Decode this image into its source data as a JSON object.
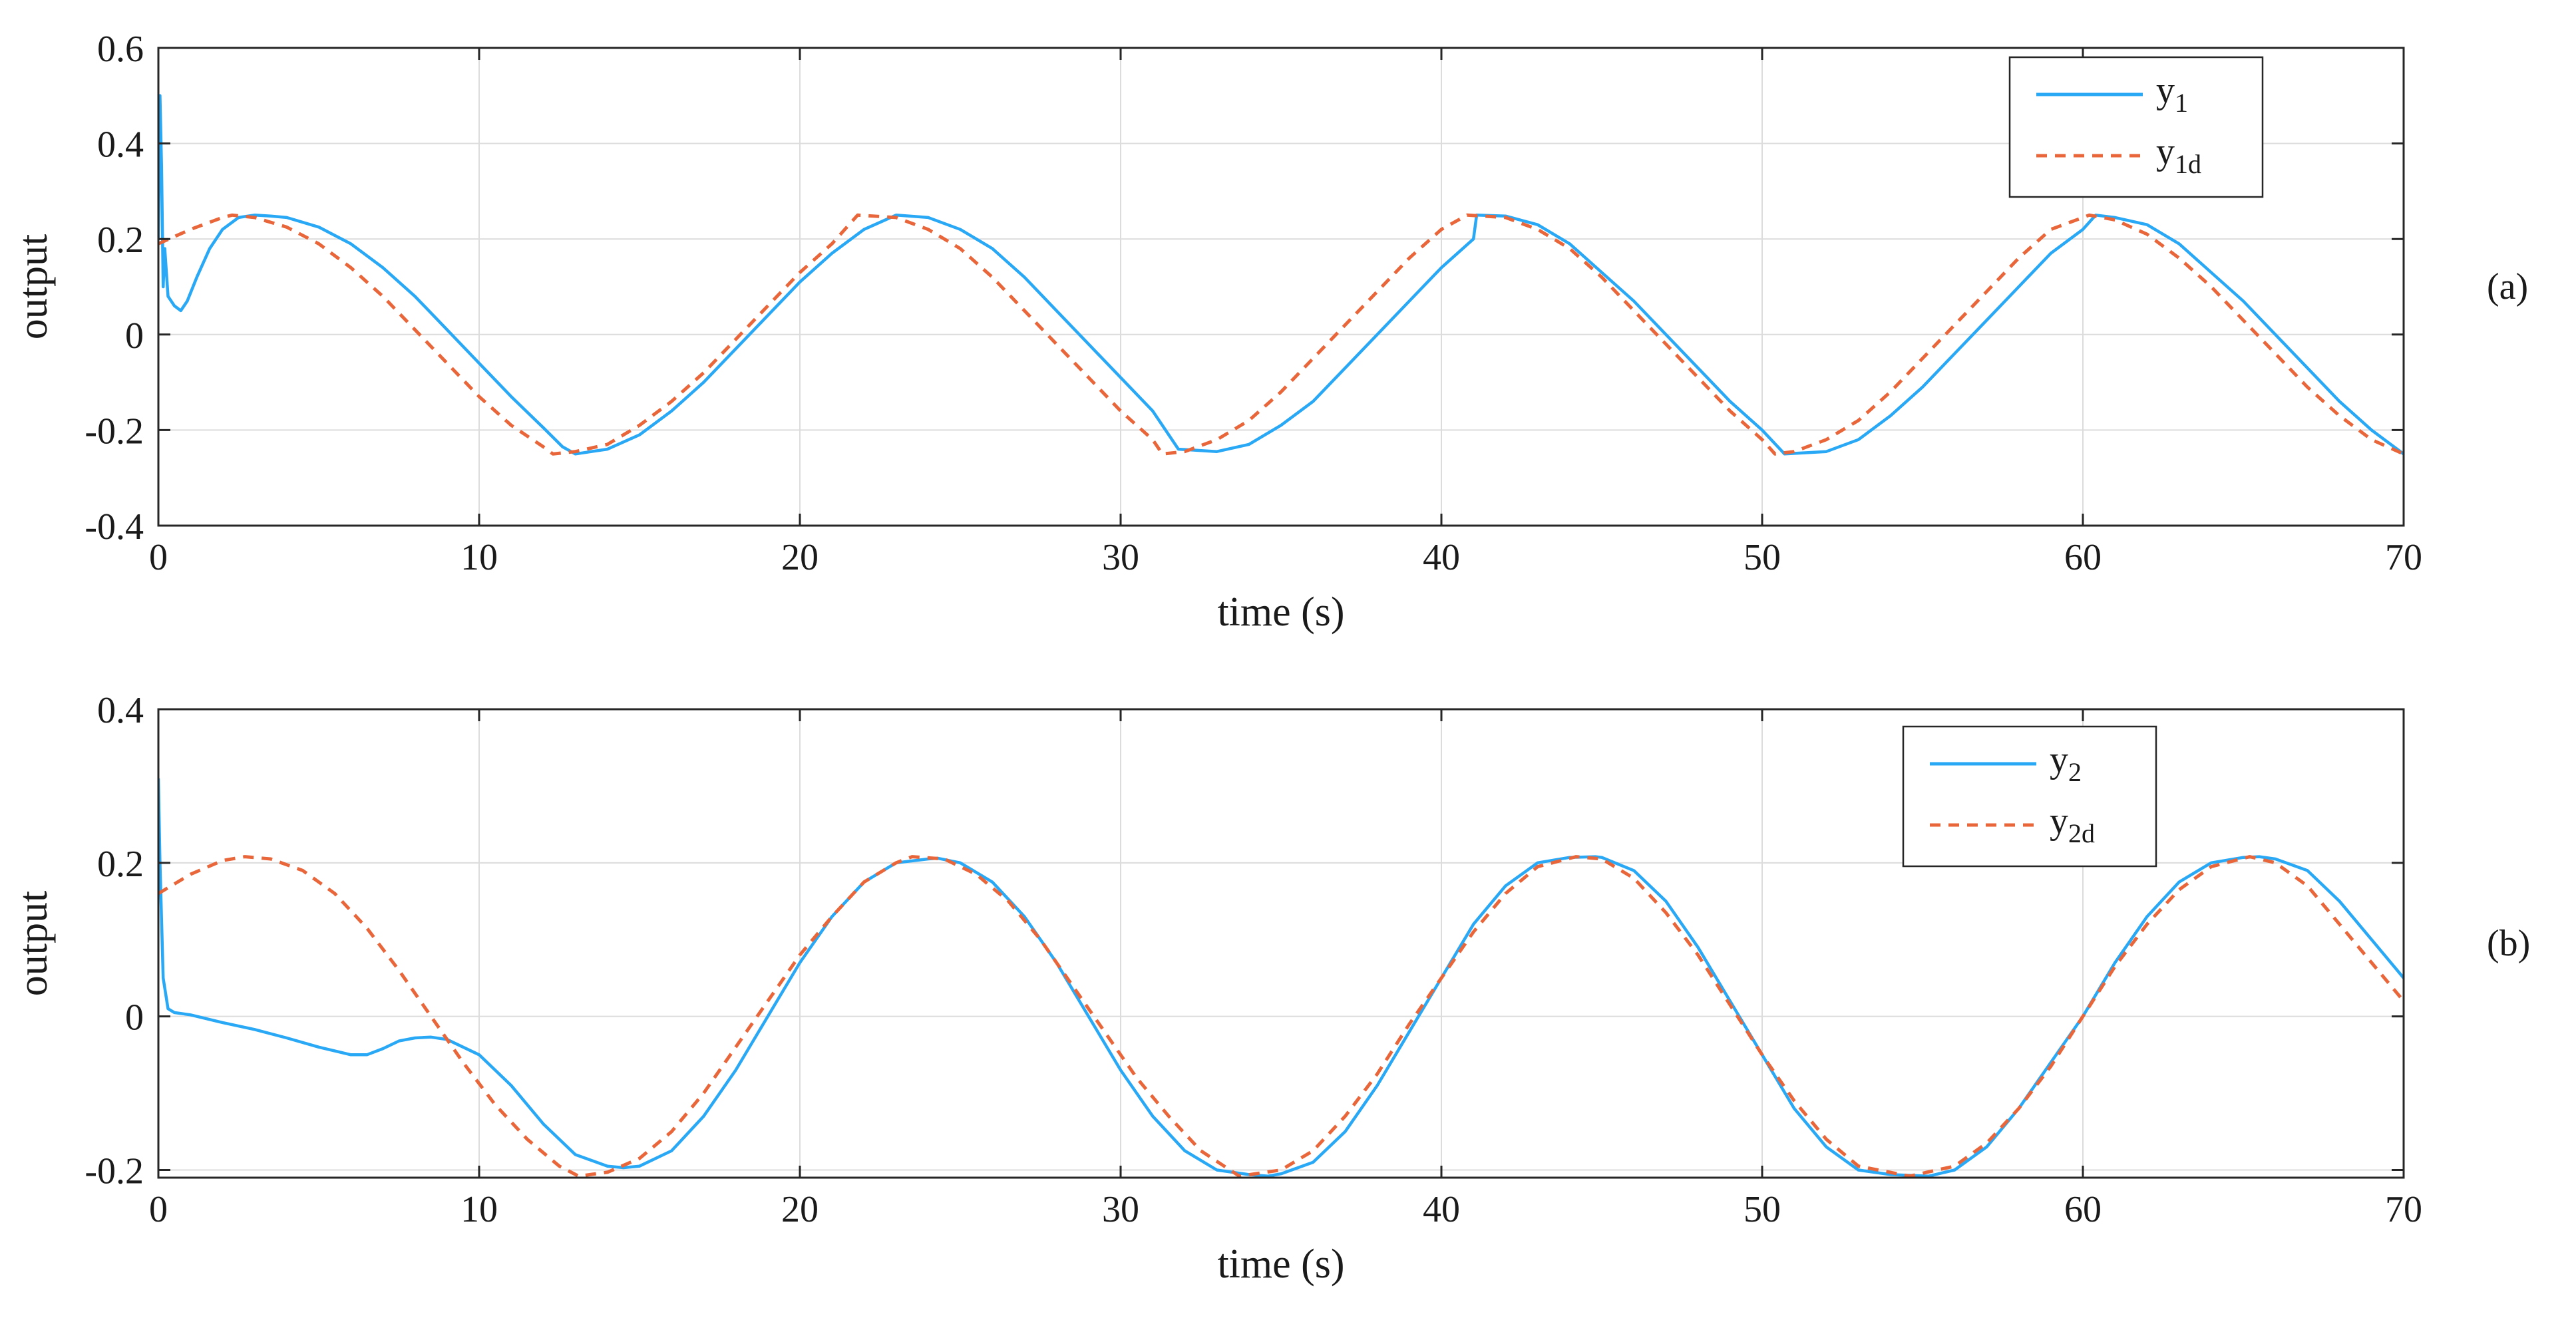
{
  "chart_data": [
    {
      "type": "line",
      "panel_label": "(a)",
      "xlabel": "time (s)",
      "ylabel": "output",
      "xlim": [
        0,
        70
      ],
      "ylim": [
        -0.4,
        0.6
      ],
      "xticks": [
        "0",
        "10",
        "20",
        "30",
        "40",
        "50",
        "60",
        "70"
      ],
      "yticks": [
        "-0.4",
        "-0.2",
        "0",
        "0.2",
        "0.4",
        "0.6"
      ],
      "grid": true,
      "legend_position": "top-right",
      "series": [
        {
          "name": "y",
          "name_sub": "1",
          "color": "#29a8f5",
          "dash": "solid",
          "x": [
            0,
            0.05,
            0.1,
            0.15,
            0.2,
            0.3,
            0.5,
            0.7,
            0.9,
            1.2,
            1.6,
            2.0,
            2.5,
            3.0,
            3.5,
            4,
            5,
            6,
            7,
            8,
            9,
            10,
            11,
            12,
            12.6,
            13,
            14,
            15,
            16,
            17,
            18,
            19,
            20,
            21,
            22,
            23,
            24,
            25,
            26,
            27,
            28,
            29,
            30,
            31,
            31.8,
            33,
            34,
            35,
            36,
            37,
            38,
            39,
            40,
            41,
            41.1,
            42,
            43,
            44,
            45,
            46,
            47,
            48,
            49,
            50,
            50.7,
            52,
            53,
            54,
            55,
            56,
            57,
            58,
            59,
            60,
            60.4,
            61,
            62,
            63,
            64,
            65,
            66,
            67,
            68,
            69,
            70
          ],
          "y": [
            0.2,
            0.5,
            0.35,
            0.1,
            0.18,
            0.08,
            0.06,
            0.05,
            0.07,
            0.12,
            0.18,
            0.22,
            0.245,
            0.25,
            0.248,
            0.245,
            0.225,
            0.19,
            0.14,
            0.08,
            0.01,
            -0.06,
            -0.13,
            -0.195,
            -0.235,
            -0.25,
            -0.24,
            -0.21,
            -0.16,
            -0.1,
            -0.03,
            0.04,
            0.11,
            0.17,
            0.22,
            0.25,
            0.245,
            0.22,
            0.18,
            0.12,
            0.05,
            -0.02,
            -0.09,
            -0.16,
            -0.24,
            -0.245,
            -0.23,
            -0.19,
            -0.14,
            -0.07,
            0.0,
            0.07,
            0.14,
            0.2,
            0.25,
            0.248,
            0.23,
            0.19,
            0.13,
            0.07,
            0.0,
            -0.07,
            -0.14,
            -0.2,
            -0.25,
            -0.245,
            -0.22,
            -0.17,
            -0.11,
            -0.04,
            0.03,
            0.1,
            0.17,
            0.22,
            0.25,
            0.245,
            0.23,
            0.19,
            0.13,
            0.07,
            0.0,
            -0.07,
            -0.14,
            -0.2,
            -0.25
          ]
        },
        {
          "name": "y",
          "name_sub": "1d",
          "color": "#e8663a",
          "dash": "dashed",
          "x": [
            0,
            1,
            2,
            2.3,
            3,
            4,
            5,
            6,
            7,
            8,
            9,
            10,
            11,
            12,
            12.3,
            13,
            14,
            15,
            16,
            17,
            18,
            19,
            20,
            21,
            21.8,
            23,
            24,
            25,
            26,
            27,
            28,
            29,
            30,
            31,
            31.3,
            32,
            33,
            34,
            35,
            36,
            37,
            38,
            39,
            40,
            40.8,
            42,
            43,
            44,
            45,
            46,
            47,
            48,
            49,
            50,
            50.4,
            51,
            52,
            53,
            54,
            55,
            56,
            57,
            58,
            59,
            60,
            60.2,
            61,
            62,
            63,
            64,
            65,
            66,
            67,
            68,
            69,
            70
          ],
          "y": [
            0.19,
            0.22,
            0.245,
            0.25,
            0.245,
            0.225,
            0.19,
            0.14,
            0.08,
            0.01,
            -0.06,
            -0.13,
            -0.19,
            -0.235,
            -0.25,
            -0.245,
            -0.23,
            -0.19,
            -0.14,
            -0.08,
            -0.01,
            0.06,
            0.13,
            0.19,
            0.25,
            0.245,
            0.22,
            0.18,
            0.12,
            0.05,
            -0.02,
            -0.09,
            -0.16,
            -0.22,
            -0.25,
            -0.245,
            -0.22,
            -0.18,
            -0.12,
            -0.05,
            0.02,
            0.09,
            0.16,
            0.22,
            0.25,
            0.245,
            0.22,
            0.18,
            0.12,
            0.05,
            -0.02,
            -0.09,
            -0.16,
            -0.22,
            -0.25,
            -0.245,
            -0.22,
            -0.18,
            -0.12,
            -0.05,
            0.02,
            0.09,
            0.16,
            0.22,
            0.245,
            0.25,
            0.24,
            0.21,
            0.16,
            0.1,
            0.03,
            -0.04,
            -0.11,
            -0.17,
            -0.22,
            -0.25
          ]
        }
      ]
    },
    {
      "type": "line",
      "panel_label": "(b)",
      "xlabel": "time (s)",
      "ylabel": "output",
      "xlim": [
        0,
        70
      ],
      "ylim": [
        -0.21,
        0.4
      ],
      "xticks": [
        "0",
        "10",
        "20",
        "30",
        "40",
        "50",
        "60",
        "70"
      ],
      "yticks": [
        "-0.2",
        "0",
        "0.2",
        "0.4"
      ],
      "ytick_values": [
        -0.2,
        0,
        0.2,
        0.4
      ],
      "grid": true,
      "legend_position": "top-right",
      "series": [
        {
          "name": "y",
          "name_sub": "2",
          "color": "#29a8f5",
          "dash": "solid",
          "x": [
            0,
            0.05,
            0.15,
            0.3,
            0.5,
            1,
            2,
            3,
            4,
            5,
            6,
            6.5,
            7,
            7.5,
            8,
            8.5,
            9,
            10,
            11,
            12,
            13,
            14,
            14.5,
            15,
            16,
            17,
            18,
            19,
            20,
            21,
            22,
            23,
            24,
            24.3,
            25,
            26,
            27,
            28,
            29,
            30,
            31,
            32,
            33,
            34,
            34.6,
            35,
            36,
            37,
            38,
            39,
            40,
            41,
            42,
            43,
            44,
            44.8,
            45,
            46,
            47,
            48,
            49,
            50,
            51,
            52,
            53,
            54,
            55.2,
            56,
            57,
            58,
            59,
            60,
            61,
            62,
            63,
            64,
            65,
            65.5,
            66,
            67,
            68,
            69,
            70
          ],
          "y": [
            0.31,
            0.2,
            0.05,
            0.01,
            0.005,
            0.002,
            -0.008,
            -0.017,
            -0.028,
            -0.04,
            -0.05,
            -0.05,
            -0.042,
            -0.032,
            -0.028,
            -0.027,
            -0.03,
            -0.05,
            -0.09,
            -0.14,
            -0.18,
            -0.195,
            -0.197,
            -0.195,
            -0.175,
            -0.13,
            -0.07,
            -0.0,
            0.07,
            0.13,
            0.175,
            0.2,
            0.205,
            0.206,
            0.2,
            0.175,
            0.13,
            0.07,
            0.0,
            -0.07,
            -0.13,
            -0.175,
            -0.2,
            -0.206,
            -0.208,
            -0.205,
            -0.19,
            -0.15,
            -0.09,
            -0.02,
            0.05,
            0.12,
            0.17,
            0.2,
            0.207,
            0.208,
            0.207,
            0.19,
            0.15,
            0.09,
            0.02,
            -0.05,
            -0.12,
            -0.17,
            -0.2,
            -0.206,
            -0.208,
            -0.2,
            -0.17,
            -0.12,
            -0.06,
            0.0,
            0.07,
            0.13,
            0.175,
            0.2,
            0.207,
            0.208,
            0.205,
            0.19,
            0.15,
            0.1,
            0.05
          ]
        },
        {
          "name": "y",
          "name_sub": "2d",
          "color": "#e8663a",
          "dash": "dashed",
          "x": [
            0,
            1,
            2,
            2.7,
            3.5,
            4.5,
            5.5,
            6.5,
            7.5,
            8.5,
            9.5,
            10.5,
            11.5,
            12.5,
            13.1,
            14,
            15,
            16,
            17,
            18,
            19,
            20,
            21,
            22,
            23,
            23.5,
            24.5,
            25.5,
            26.5,
            27.5,
            28.5,
            29.5,
            30.5,
            31.5,
            32.5,
            33.7,
            35,
            36,
            37,
            38,
            39,
            40,
            41,
            42,
            43,
            44.2,
            45,
            46,
            47,
            48,
            49,
            50,
            51,
            52,
            53,
            54.6,
            56,
            57,
            58,
            59,
            60,
            61,
            62,
            63,
            64,
            65.2,
            66,
            67,
            68,
            69,
            70
          ],
          "y": [
            0.16,
            0.185,
            0.203,
            0.208,
            0.205,
            0.19,
            0.16,
            0.115,
            0.06,
            0.0,
            -0.06,
            -0.115,
            -0.16,
            -0.195,
            -0.208,
            -0.203,
            -0.185,
            -0.15,
            -0.1,
            -0.04,
            0.02,
            0.08,
            0.13,
            0.175,
            0.2,
            0.208,
            0.205,
            0.185,
            0.15,
            0.1,
            0.04,
            -0.02,
            -0.08,
            -0.13,
            -0.175,
            -0.208,
            -0.2,
            -0.175,
            -0.13,
            -0.075,
            -0.01,
            0.05,
            0.11,
            0.16,
            0.195,
            0.208,
            0.205,
            0.18,
            0.135,
            0.08,
            0.015,
            -0.05,
            -0.11,
            -0.16,
            -0.195,
            -0.208,
            -0.195,
            -0.165,
            -0.12,
            -0.065,
            0.0,
            0.065,
            0.12,
            0.165,
            0.195,
            0.208,
            0.2,
            0.17,
            0.12,
            0.07,
            0.02
          ]
        }
      ]
    }
  ]
}
